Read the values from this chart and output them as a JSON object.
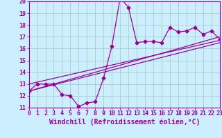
{
  "xlabel": "Windchill (Refroidissement éolien,°C)",
  "background_color": "#cceeff",
  "line_color": "#990099",
  "grid_color": "#99ccbb",
  "x_data": [
    0,
    1,
    2,
    3,
    4,
    5,
    6,
    7,
    8,
    9,
    10,
    11,
    12,
    13,
    14,
    15,
    16,
    17,
    18,
    19,
    20,
    21,
    22,
    23
  ],
  "y_data": [
    12.4,
    13.0,
    13.0,
    13.0,
    12.1,
    12.0,
    11.1,
    11.4,
    11.5,
    13.5,
    16.2,
    20.3,
    19.5,
    16.5,
    16.6,
    16.6,
    16.5,
    17.8,
    17.4,
    17.5,
    17.8,
    17.2,
    17.5,
    16.8
  ],
  "ylim": [
    11,
    20
  ],
  "yticks": [
    11,
    12,
    13,
    14,
    15,
    16,
    17,
    18,
    19,
    20
  ],
  "xlim": [
    0,
    23
  ],
  "xticks": [
    0,
    1,
    2,
    3,
    4,
    5,
    6,
    7,
    8,
    9,
    10,
    11,
    12,
    13,
    14,
    15,
    16,
    17,
    18,
    19,
    20,
    21,
    22,
    23
  ],
  "line1_x": [
    0,
    23
  ],
  "line1_y": [
    13.0,
    16.7
  ],
  "line2_x": [
    0,
    23
  ],
  "line2_y": [
    12.4,
    17.0
  ],
  "line3_x": [
    0,
    23
  ],
  "line3_y": [
    12.4,
    16.5
  ],
  "font_color": "#990099",
  "tick_labelsize": 6.0,
  "xlabel_fontsize": 7.0
}
